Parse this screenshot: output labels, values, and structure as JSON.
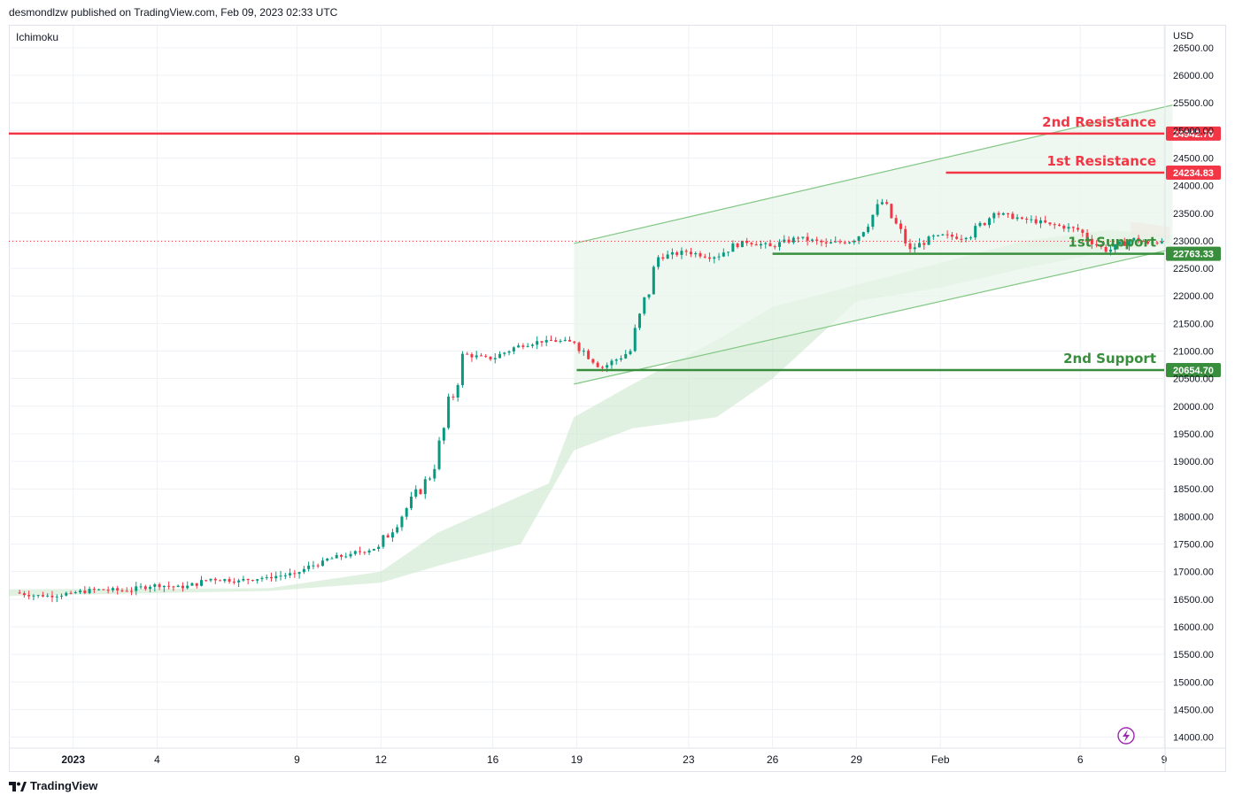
{
  "header": {
    "publisher": "desmondlzw published on TradingView.com, Feb 09, 2023 02:33 UTC"
  },
  "indicator_label": "Ichimoku",
  "currency_label": "USD",
  "footer": {
    "brand": "TradingView"
  },
  "colors": {
    "resistance": "#f23645",
    "support": "#388e3c",
    "channel": "#81c784",
    "cloud": "#c8e6c9",
    "bull": "#089981",
    "bear": "#f23645",
    "grid": "#eef1f5"
  },
  "chart_data": {
    "type": "candlestick",
    "title": "",
    "xlabel": "",
    "ylabel": "USD",
    "ylim": [
      13800,
      26900
    ],
    "y_ticks": [
      14000,
      14500,
      15000,
      15500,
      16000,
      16500,
      17000,
      17500,
      18000,
      18500,
      19000,
      19500,
      20000,
      20500,
      21000,
      21500,
      22000,
      22500,
      23000,
      23500,
      24000,
      24500,
      25000,
      25500,
      26000,
      26500
    ],
    "y_tick_labels": [
      "14000.00",
      "14500.00",
      "15000.00",
      "15500.00",
      "16000.00",
      "16500.00",
      "17000.00",
      "17500.00",
      "18000.00",
      "18500.00",
      "19000.00",
      "19500.00",
      "20000.00",
      "20500.00",
      "21000.00",
      "21500.00",
      "22000.00",
      "22500.00",
      "23000.00",
      "23500.00",
      "24000.00",
      "24500.00",
      "25000.00",
      "25500.00",
      "26000.00",
      "26500.00"
    ],
    "x_ticks": [
      "2023",
      "4",
      "9",
      "12",
      "16",
      "19",
      "23",
      "26",
      "29",
      "Feb",
      "6",
      "9"
    ],
    "x_range_days": [
      -1.3,
      40.0
    ],
    "x_tick_days": [
      1,
      4,
      9,
      12,
      16,
      19,
      23,
      26,
      29,
      32,
      37,
      40
    ],
    "levels": [
      {
        "name": "2nd Resistance",
        "value": 24942.7,
        "label": "24942.70",
        "kind": "resistance",
        "from_day": -1.3
      },
      {
        "name": "1st Resistance",
        "value": 24234.83,
        "label": "24234.83",
        "kind": "resistance",
        "from_day": 32.2
      },
      {
        "name": "1st Support",
        "value": 22763.33,
        "label": "22763.33",
        "kind": "support",
        "from_day": 26
      },
      {
        "name": "2nd Support",
        "value": 20654.7,
        "label": "20654.70",
        "kind": "support",
        "from_day": 19
      }
    ],
    "channel": {
      "upper": [
        [
          18.9,
          22950
        ],
        [
          40.3,
          25460
        ]
      ],
      "lower": [
        [
          18.9,
          20400
        ],
        [
          40.3,
          22850
        ]
      ]
    },
    "last_price": 22990,
    "candles_daily": [
      {
        "d": -1,
        "o": 16620,
        "c": 16550
      },
      {
        "d": 0,
        "o": 16550,
        "c": 16610
      },
      {
        "d": 1,
        "o": 16610,
        "c": 16680
      },
      {
        "d": 2,
        "o": 16680,
        "c": 16650
      },
      {
        "d": 3,
        "o": 16650,
        "c": 16770
      },
      {
        "d": 4,
        "o": 16770,
        "c": 16700
      },
      {
        "d": 5,
        "o": 16700,
        "c": 16870
      },
      {
        "d": 6,
        "o": 16870,
        "c": 16840
      },
      {
        "d": 7,
        "o": 16840,
        "c": 16900
      },
      {
        "d": 8,
        "o": 16900,
        "c": 16960
      },
      {
        "d": 9,
        "o": 16960,
        "c": 17200
      },
      {
        "d": 10,
        "o": 17200,
        "c": 17320
      },
      {
        "d": 11,
        "o": 17320,
        "c": 17450
      },
      {
        "d": 12,
        "o": 17450,
        "c": 18150
      },
      {
        "d": 13,
        "o": 18150,
        "c": 18860
      },
      {
        "d": 14,
        "o": 18860,
        "c": 20950
      },
      {
        "d": 15,
        "o": 20950,
        "c": 20850
      },
      {
        "d": 16,
        "o": 20850,
        "c": 21100
      },
      {
        "d": 17,
        "o": 21100,
        "c": 21200
      },
      {
        "d": 18,
        "o": 21200,
        "c": 21150
      },
      {
        "d": 19,
        "o": 21150,
        "c": 20700
      },
      {
        "d": 20,
        "o": 20700,
        "c": 21000
      },
      {
        "d": 21,
        "o": 21000,
        "c": 22700
      },
      {
        "d": 22,
        "o": 22700,
        "c": 22800
      },
      {
        "d": 23,
        "o": 22800,
        "c": 22700
      },
      {
        "d": 24,
        "o": 22700,
        "c": 23000
      },
      {
        "d": 25,
        "o": 23000,
        "c": 22900
      },
      {
        "d": 26,
        "o": 22900,
        "c": 23050
      },
      {
        "d": 27,
        "o": 23050,
        "c": 22950
      },
      {
        "d": 28,
        "o": 22950,
        "c": 23000
      },
      {
        "d": 29,
        "o": 23000,
        "c": 23700
      },
      {
        "d": 30,
        "o": 23700,
        "c": 22850
      },
      {
        "d": 31,
        "o": 22850,
        "c": 23100
      },
      {
        "d": 32,
        "o": 23100,
        "c": 23050
      },
      {
        "d": 33,
        "o": 23050,
        "c": 23500
      },
      {
        "d": 34,
        "o": 23500,
        "c": 23400
      },
      {
        "d": 35,
        "o": 23400,
        "c": 23300
      },
      {
        "d": 36,
        "o": 23300,
        "c": 23200
      },
      {
        "d": 37,
        "o": 23200,
        "c": 22800
      },
      {
        "d": 38,
        "o": 22800,
        "c": 23050
      },
      {
        "d": 39,
        "o": 23050,
        "c": 22950
      },
      {
        "d": 39.5,
        "o": 22950,
        "c": 22990
      }
    ]
  }
}
